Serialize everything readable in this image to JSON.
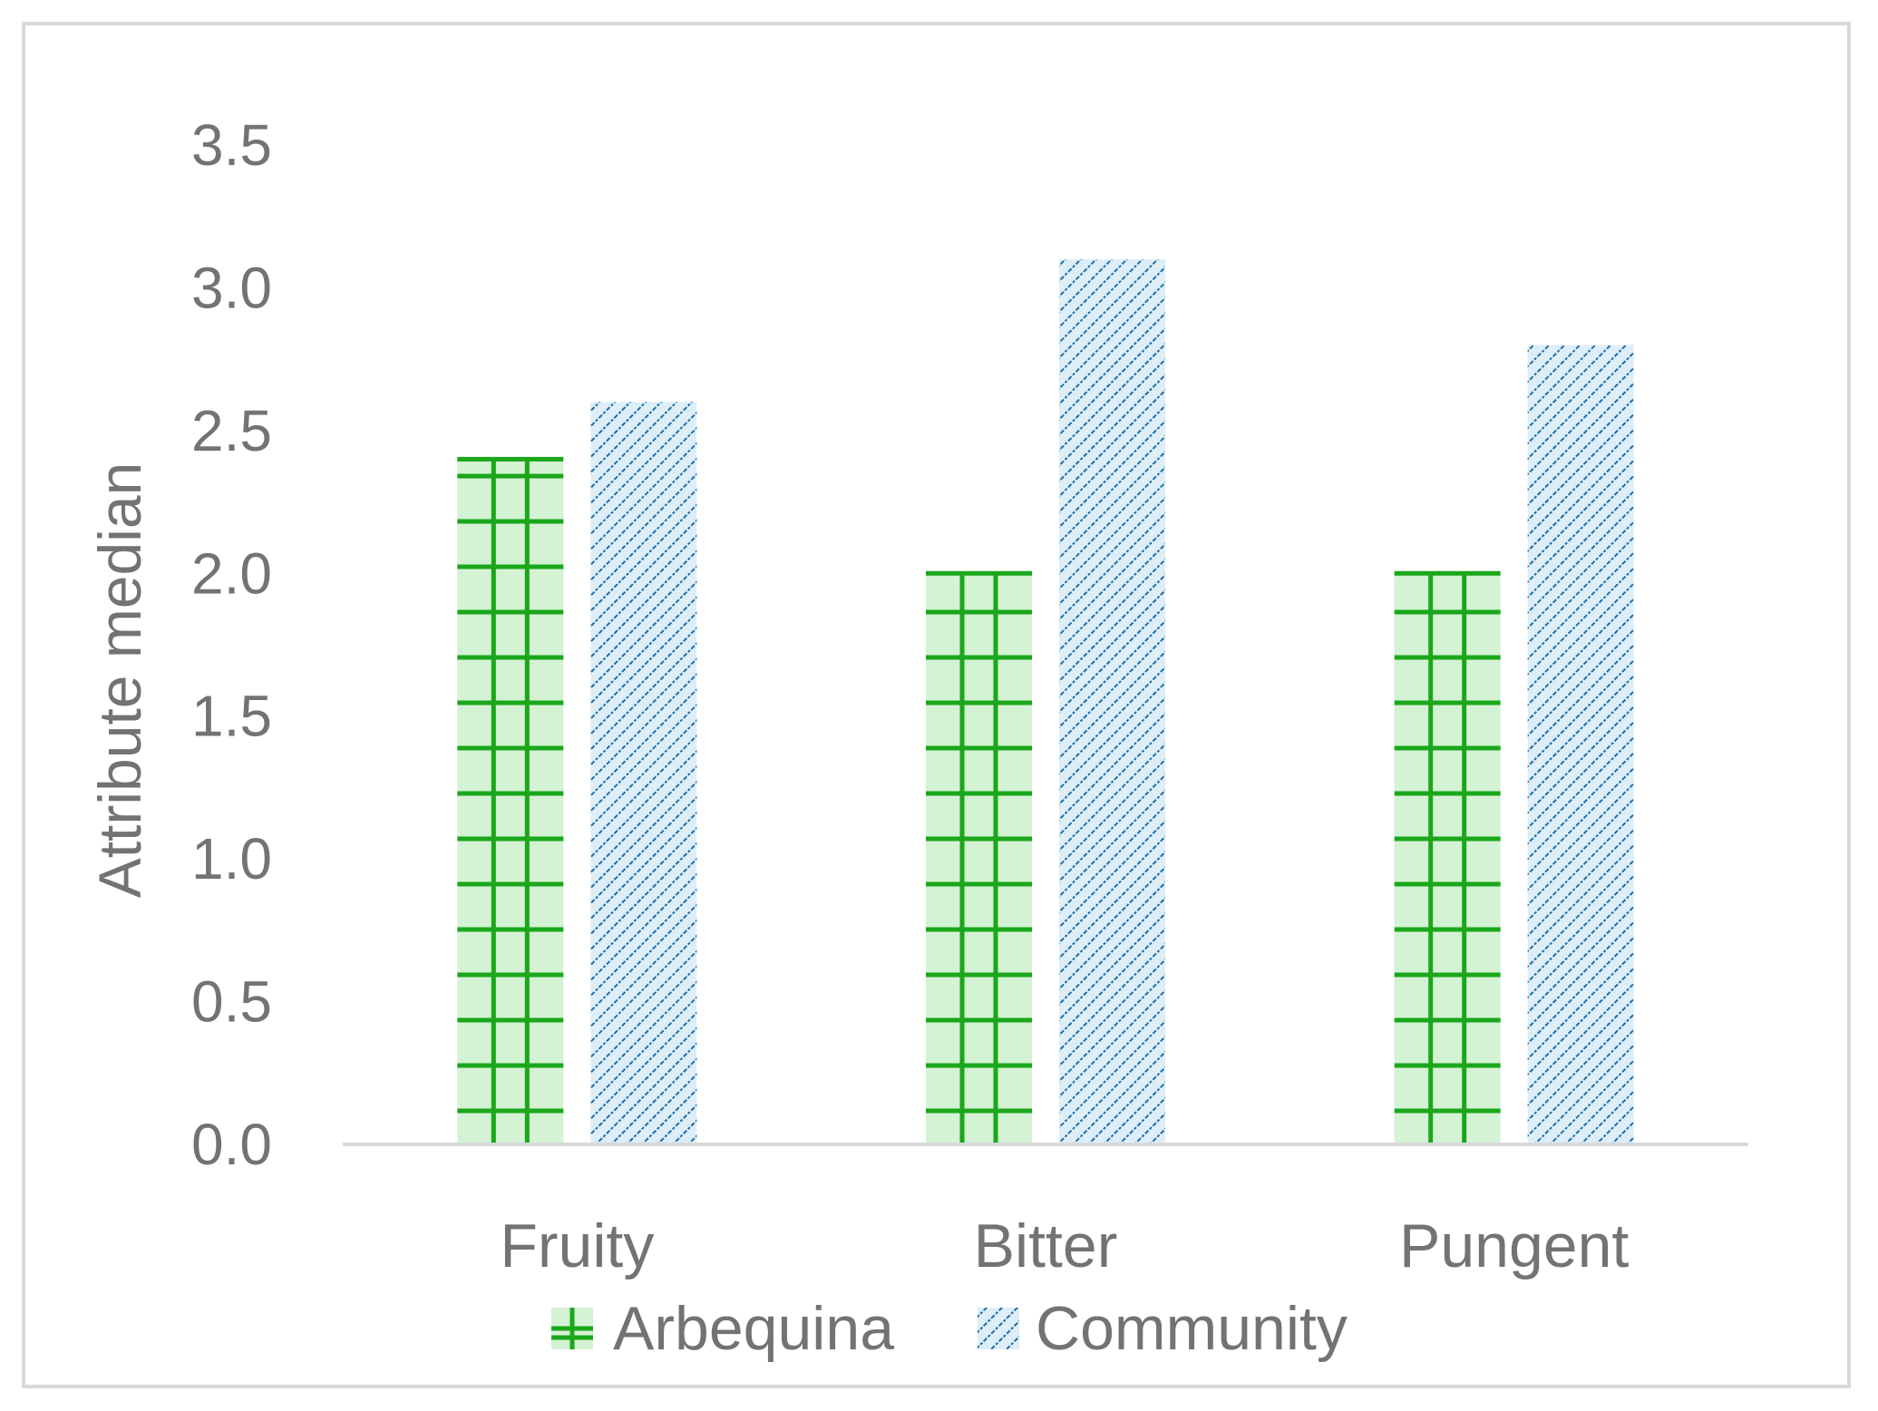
{
  "chart_data": {
    "type": "bar",
    "title": "",
    "xlabel": "",
    "ylabel": "Attribute median",
    "categories": [
      "Fruity",
      "Bitter",
      "Pungent"
    ],
    "series": [
      {
        "name": "Arbequina",
        "values": [
          2.4,
          2.0,
          2.0
        ],
        "fill": "#d4f2d4",
        "stroke": "#1aa71a",
        "pattern": "grid"
      },
      {
        "name": "Community",
        "values": [
          2.6,
          3.1,
          2.8
        ],
        "fill": "#deeef8",
        "stroke": "#1f6ea8",
        "pattern": "diagonal"
      }
    ],
    "ylim": [
      0,
      3.5
    ],
    "yticks": [
      "0.0",
      "0.5",
      "1.0",
      "1.5",
      "2.0",
      "2.5",
      "3.0",
      "3.5"
    ],
    "grid": false,
    "legend": "bottom",
    "axis_color": "#d9d9d9",
    "text_color": "#737373"
  }
}
